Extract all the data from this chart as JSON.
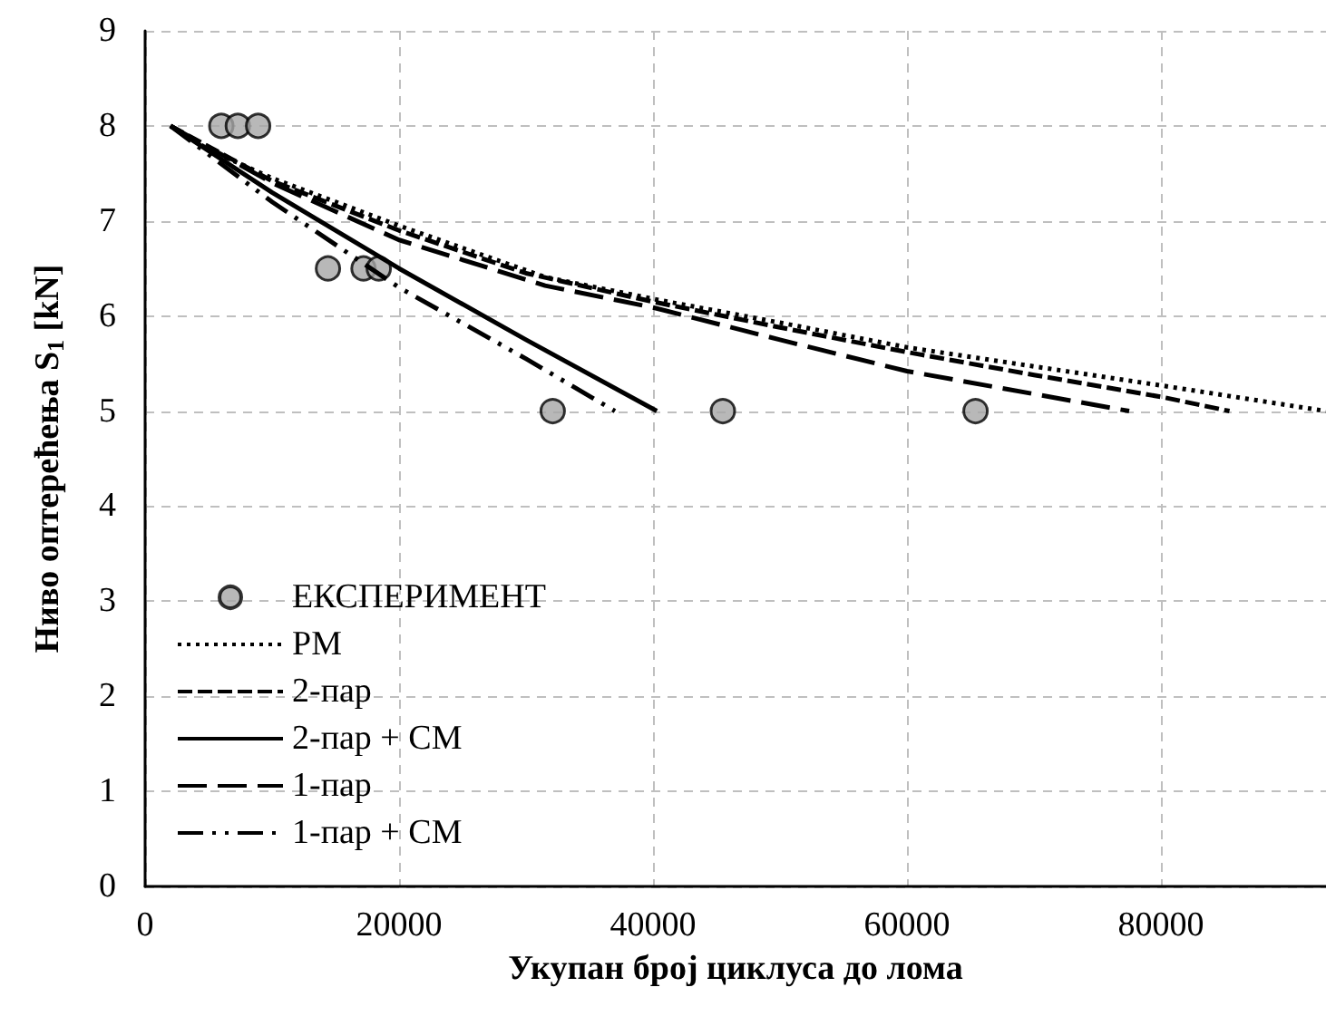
{
  "chart_data": {
    "type": "line",
    "xlabel": "Укупан број циклуса до лома",
    "ylabel": "Ниво оптерећења S$_{1}$ [kN]",
    "xlim": [
      0,
      93000
    ],
    "xticks": [
      0,
      20000,
      40000,
      60000,
      80000
    ],
    "ylim": [
      0,
      9
    ],
    "yticks": [
      0,
      1,
      2,
      3,
      4,
      5,
      6,
      7,
      8,
      9
    ],
    "grid": true,
    "legend": "bottom left",
    "series": [
      {
        "name": "ЕКСПЕРИМЕНТ",
        "type": "scatter",
        "marker": "circle",
        "color": "#a6a6a6",
        "x": [
          6000,
          7300,
          8900,
          14400,
          17200,
          18400,
          32100,
          45500,
          65400
        ],
        "values": [
          8,
          8,
          8,
          6.5,
          6.5,
          6.5,
          5,
          5,
          5
        ]
      },
      {
        "name": "PM",
        "line_style": "dotted",
        "marker": "none",
        "color": "#000000",
        "x": [
          2000,
          5000,
          10000,
          20000,
          31500,
          40000,
          50000,
          60000,
          70000,
          80000,
          93000
        ],
        "values": [
          8,
          7.75,
          7.45,
          6.95,
          6.41,
          6.18,
          5.93,
          5.67,
          5.47,
          5.27,
          5.0
        ]
      },
      {
        "name": "2-пар",
        "line_style": "dashed",
        "marker": "none",
        "color": "#000000",
        "x": [
          2000,
          10000,
          20000,
          30000,
          40000,
          50000,
          60000,
          70000,
          80000,
          85400
        ],
        "values": [
          8,
          7.42,
          6.9,
          6.45,
          6.15,
          5.88,
          5.62,
          5.38,
          5.15,
          5.0
        ]
      },
      {
        "name": "2-пар + CM",
        "line_style": "solid",
        "marker": "none",
        "color": "#000000",
        "x": [
          2000,
          10000,
          20000,
          30000,
          40300
        ],
        "values": [
          8,
          7.3,
          6.5,
          5.75,
          5.0
        ]
      },
      {
        "name": "1-пар",
        "line_style": "longdash",
        "marker": "none",
        "color": "#000000",
        "x": [
          2000,
          10000,
          20000,
          31500,
          40000,
          50000,
          60000,
          70000,
          77500
        ],
        "values": [
          8,
          7.4,
          6.8,
          6.32,
          6.09,
          5.75,
          5.42,
          5.18,
          5.0
        ]
      },
      {
        "name": "1-пар + CM",
        "line_style": "dashdot",
        "marker": "none",
        "color": "#000000",
        "x": [
          2000,
          10000,
          20000,
          30000,
          37000
        ],
        "values": [
          8,
          7.2,
          6.3,
          5.55,
          5.0
        ]
      }
    ]
  }
}
